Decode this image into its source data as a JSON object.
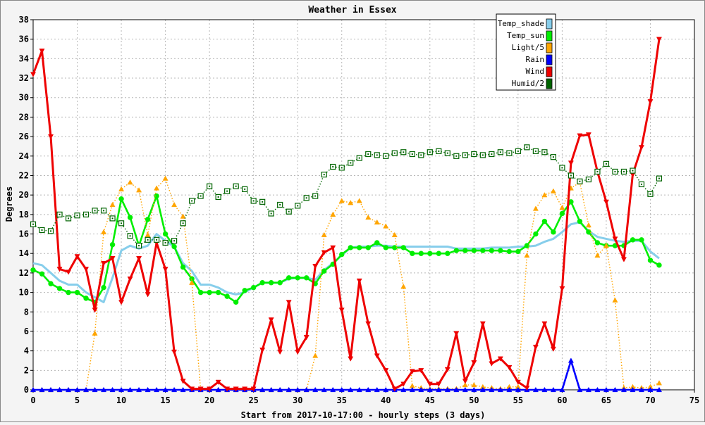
{
  "chart_data": {
    "type": "line",
    "title": "Weather in Essex",
    "xlabel": "Start from 2017-10-17:00 - hourly steps (3 days)",
    "ylabel": "Degrees",
    "xlim": [
      0,
      75
    ],
    "ylim": [
      0,
      38
    ],
    "x_ticks": [
      0,
      5,
      10,
      15,
      20,
      25,
      30,
      35,
      40,
      45,
      50,
      55,
      60,
      65,
      70,
      75
    ],
    "y_ticks": [
      0,
      2,
      4,
      6,
      8,
      10,
      12,
      14,
      16,
      18,
      20,
      22,
      24,
      26,
      28,
      30,
      32,
      34,
      36,
      38
    ],
    "grid": true,
    "legend_position": "top-right",
    "series": [
      {
        "name": "Temp_shade",
        "color": "#87ceeb",
        "style": "solid-thick",
        "marker": "none",
        "values": [
          13.0,
          12.8,
          12.0,
          11.2,
          10.8,
          10.8,
          10.0,
          9.5,
          9.0,
          11.5,
          14.3,
          14.8,
          14.5,
          14.8,
          16.0,
          15.3,
          14.7,
          13.0,
          12.2,
          10.8,
          10.8,
          10.5,
          10.0,
          9.8,
          10.0,
          10.5,
          11.0,
          11.0,
          11.0,
          11.4,
          11.5,
          11.5,
          11.3,
          12.3,
          13.0,
          13.8,
          14.6,
          14.7,
          14.7,
          14.8,
          14.8,
          14.7,
          14.7,
          14.7,
          14.7,
          14.7,
          14.7,
          14.7,
          14.5,
          14.5,
          14.5,
          14.5,
          14.6,
          14.6,
          14.6,
          14.7,
          14.7,
          14.8,
          15.2,
          15.5,
          16.2,
          17.0,
          17.2,
          16.3,
          15.7,
          15.5,
          15.3,
          15.2,
          15.3,
          15.3,
          14.2,
          13.5
        ]
      },
      {
        "name": "Temp_sun",
        "color": "#00ee00",
        "style": "solid",
        "marker": "circle",
        "values": [
          12.3,
          11.9,
          10.9,
          10.4,
          10.0,
          10.0,
          9.4,
          9.0,
          10.5,
          14.9,
          19.6,
          17.7,
          14.8,
          17.5,
          19.9,
          16.0,
          14.7,
          12.6,
          11.4,
          10.0,
          10.0,
          10.0,
          9.6,
          9.0,
          10.2,
          10.5,
          11.0,
          11.0,
          11.0,
          11.5,
          11.5,
          11.5,
          10.9,
          12.2,
          12.9,
          13.9,
          14.6,
          14.6,
          14.6,
          15.1,
          14.6,
          14.6,
          14.6,
          14.0,
          14.0,
          14.0,
          14.0,
          14.0,
          14.3,
          14.3,
          14.3,
          14.3,
          14.3,
          14.3,
          14.2,
          14.2,
          14.8,
          16.0,
          17.3,
          16.2,
          18.1,
          19.3,
          17.3,
          16.2,
          15.1,
          14.8,
          14.8,
          14.8,
          15.4,
          15.4,
          13.3,
          12.8
        ]
      },
      {
        "name": "Light/5",
        "color": "#ffa500",
        "style": "dotted",
        "marker": "triangle-up",
        "values": [
          0,
          0,
          0,
          0,
          0,
          0,
          0,
          5.8,
          16.2,
          19.0,
          20.6,
          21.3,
          20.5,
          15.9,
          20.7,
          21.7,
          19.0,
          17.8,
          11.0,
          0,
          0,
          0,
          0,
          0,
          0,
          0,
          0,
          0,
          0,
          0,
          0,
          0,
          3.5,
          15.9,
          18.0,
          19.4,
          19.2,
          19.4,
          17.7,
          17.2,
          16.8,
          15.9,
          10.6,
          0.4,
          0.2,
          0.1,
          0.1,
          0.1,
          0.1,
          0.5,
          0.5,
          0.3,
          0.2,
          0.1,
          0.3,
          0.3,
          13.8,
          18.6,
          20.0,
          20.4,
          18.7,
          20.7,
          21.3,
          16.9,
          13.8,
          14.8,
          9.2,
          0.2,
          0.3,
          0.2,
          0.3,
          0.7
        ]
      },
      {
        "name": "Rain",
        "color": "#0000ff",
        "style": "solid",
        "marker": "triangle-up",
        "values": [
          0,
          0,
          0,
          0,
          0,
          0,
          0,
          0,
          0,
          0,
          0,
          0,
          0,
          0,
          0,
          0,
          0,
          0,
          0,
          0,
          0,
          0,
          0,
          0,
          0,
          0,
          0,
          0,
          0,
          0,
          0,
          0,
          0,
          0,
          0,
          0,
          0,
          0,
          0,
          0,
          0,
          0,
          0,
          0,
          0,
          0,
          0,
          0,
          0,
          0,
          0,
          0,
          0,
          0,
          0,
          0,
          0,
          0,
          0,
          0,
          0,
          3.0,
          0,
          0,
          0,
          0,
          0,
          0,
          0,
          0,
          0,
          0
        ]
      },
      {
        "name": "Wind",
        "color": "#ee0000",
        "style": "solid-thick",
        "marker": "triangle-down",
        "values": [
          32.4,
          34.8,
          26.0,
          12.4,
          12.1,
          13.7,
          12.4,
          8.2,
          13.0,
          13.5,
          9.0,
          11.4,
          13.5,
          9.8,
          15.1,
          12.4,
          3.9,
          0.9,
          0.1,
          0.1,
          0.1,
          0.8,
          0.1,
          0.1,
          0.1,
          0.1,
          4.1,
          7.2,
          3.9,
          9.0,
          3.9,
          5.4,
          12.7,
          14.1,
          14.6,
          8.2,
          3.2,
          11.2,
          6.8,
          3.5,
          2.0,
          0.1,
          0.6,
          1.9,
          2.0,
          0.6,
          0.6,
          2.1,
          5.8,
          0.9,
          2.8,
          6.8,
          2.7,
          3.2,
          2.3,
          0.8,
          0.2,
          4.4,
          6.8,
          4.2,
          10.4,
          23.3,
          26.1,
          26.2,
          22.4,
          19.3,
          15.5,
          13.4,
          22.1,
          24.9,
          29.6,
          36.0
        ]
      },
      {
        "name": "Humid/2",
        "color": "#006400",
        "style": "dotted",
        "marker": "square",
        "values": [
          17.0,
          16.4,
          16.3,
          18.0,
          17.6,
          17.9,
          18.0,
          18.4,
          18.4,
          17.6,
          17.1,
          15.8,
          14.8,
          15.4,
          15.4,
          15.1,
          15.3,
          17.1,
          19.4,
          19.9,
          20.9,
          19.8,
          20.4,
          20.9,
          20.6,
          19.4,
          19.3,
          18.1,
          19.0,
          18.3,
          18.9,
          19.7,
          19.9,
          22.1,
          22.9,
          22.8,
          23.3,
          23.8,
          24.2,
          24.1,
          24.0,
          24.3,
          24.4,
          24.2,
          24.1,
          24.4,
          24.5,
          24.3,
          24.0,
          24.1,
          24.2,
          24.1,
          24.2,
          24.4,
          24.3,
          24.5,
          24.9,
          24.5,
          24.4,
          23.9,
          22.8,
          22.0,
          21.4,
          21.6,
          22.4,
          23.2,
          22.4,
          22.4,
          22.5,
          21.1,
          20.1,
          21.7
        ]
      }
    ]
  }
}
